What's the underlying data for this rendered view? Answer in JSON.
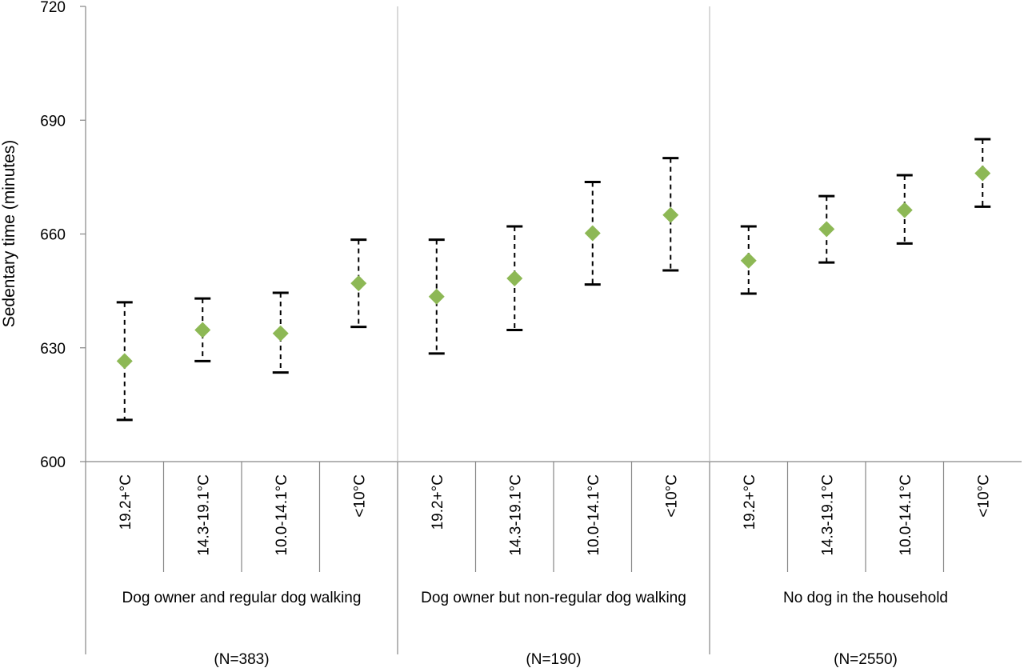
{
  "chart_data": {
    "type": "scatter",
    "error_bars": true,
    "ylabel": "Sedentary time (minutes)",
    "ylim": [
      600,
      720
    ],
    "yticks": [
      600,
      630,
      660,
      690,
      720
    ],
    "grid": false,
    "marker_color": "#8db855",
    "groups": [
      {
        "label": "Dog owner and regular dog walking",
        "n_label": "(N=383)",
        "categories": [
          "19.2+°C",
          "14.3-19.1°C",
          "10.0-14.1°C",
          "<10°C"
        ],
        "values": [
          626.5,
          634.7,
          633.8,
          647.0
        ],
        "lower": [
          611.0,
          626.5,
          623.5,
          635.5
        ],
        "upper": [
          642.0,
          643.0,
          644.5,
          658.5
        ]
      },
      {
        "label": "Dog owner but non-regular dog walking",
        "n_label": "(N=190)",
        "categories": [
          "19.2+°C",
          "14.3-19.1°C",
          "10.0-14.1°C",
          "<10°C"
        ],
        "values": [
          643.5,
          648.3,
          660.2,
          665.0
        ],
        "lower": [
          628.5,
          634.7,
          646.7,
          650.4
        ],
        "upper": [
          658.5,
          662.0,
          673.7,
          680.0
        ]
      },
      {
        "label": "No dog in the household",
        "n_label": "(N=2550)",
        "categories": [
          "19.2+°C",
          "14.3-19.1°C",
          "10.0-14.1°C",
          "<10°C"
        ],
        "values": [
          653.0,
          661.3,
          666.3,
          676.0
        ],
        "lower": [
          644.3,
          652.5,
          657.5,
          667.2
        ],
        "upper": [
          662.0,
          670.0,
          675.5,
          685.0
        ]
      }
    ]
  }
}
